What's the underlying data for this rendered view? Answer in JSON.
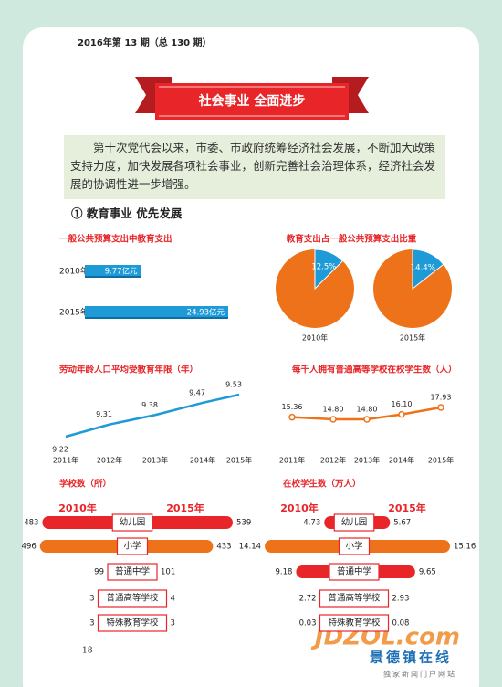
{
  "header": {
    "issue": "2016年第 13 期（总 130 期）",
    "banner": "社会事业  全面进步"
  },
  "intro": "第十次党代会以来，市委、市政府统筹经济社会发展，不断加大政策支持力度，加快发展各项社会事业，创新完善社会治理体系，经济社会发展的协调性进一步增强。",
  "section": "① 教育事业  优先发展",
  "chart_data": [
    {
      "type": "hbar",
      "title": "一般公共预算支出中教育支出",
      "categories": [
        "2010年",
        "2015年"
      ],
      "values": [
        9.77,
        24.93
      ],
      "value_labels": [
        "9.77亿元",
        "24.93亿元"
      ],
      "color": "#1e9ad6"
    },
    {
      "type": "pie",
      "title": "教育支出占一般公共预算支出比重",
      "categories": [
        "2010年",
        "2015年"
      ],
      "values": [
        12.5,
        14.4
      ],
      "value_labels": [
        "12.5%",
        "14.4%"
      ],
      "color": "#1e9ad6",
      "rest_color": "#ee7219"
    },
    {
      "type": "line",
      "title": "劳动年龄人口平均受教育年限（年）",
      "categories": [
        "2011年",
        "2012年",
        "2013年",
        "2014年",
        "2015年"
      ],
      "values": [
        9.22,
        9.31,
        9.38,
        9.47,
        9.53
      ],
      "color": "#1e9ad6",
      "markers": false
    },
    {
      "type": "line",
      "title": "每千人拥有普通高等学校在校学生数（人）",
      "categories": [
        "2011年",
        "2012年",
        "2013年",
        "2014年",
        "2015年"
      ],
      "values": [
        15.36,
        14.8,
        14.8,
        16.1,
        17.93
      ],
      "value_labels": [
        "15.36",
        "14.80",
        "14.80",
        "16.10",
        "17.93"
      ],
      "color": "#ee7219",
      "markers": true
    },
    {
      "type": "butterfly",
      "title": "学校数（所）",
      "categories": [
        "幼儿园",
        "小学",
        "普通中学",
        "普通高等学校",
        "特殊教育学校"
      ],
      "colors": [
        "#e8262a",
        "#ee7219",
        "#e8262a",
        "#1e9ad6",
        "#1e9ad6"
      ],
      "series": [
        {
          "name": "2010年",
          "values": [
            483,
            496,
            99,
            3,
            3
          ]
        },
        {
          "name": "2015年",
          "values": [
            539,
            433,
            101,
            4,
            3
          ]
        }
      ]
    },
    {
      "type": "butterfly",
      "title": "在校学生数（万人）",
      "categories": [
        "幼儿园",
        "小学",
        "普通中学",
        "普通高等学校",
        "特殊教育学校"
      ],
      "colors": [
        "#e8262a",
        "#ee7219",
        "#e8262a",
        "#1e9ad6",
        "#1e9ad6"
      ],
      "series": [
        {
          "name": "2010年",
          "values": [
            4.73,
            14.14,
            9.18,
            2.72,
            0.03
          ]
        },
        {
          "name": "2015年",
          "values": [
            5.67,
            15.16,
            9.65,
            2.93,
            0.08
          ]
        }
      ]
    }
  ],
  "footer": {
    "page": "18",
    "logo": "JDZOL.com",
    "site": "景德镇在线",
    "slogan": "独家新闻门户网站"
  }
}
